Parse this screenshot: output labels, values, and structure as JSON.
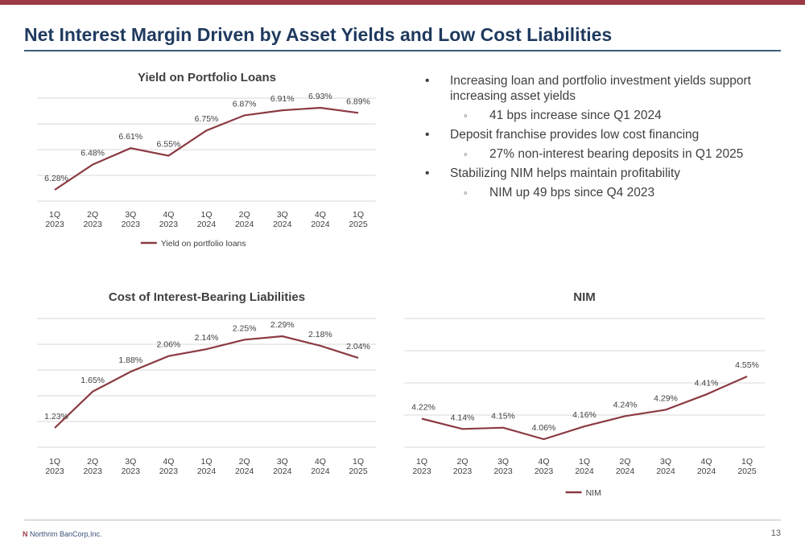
{
  "slide": {
    "title": "Net Interest Margin Driven by Asset Yields and Low Cost Liabilities",
    "page_number": "13",
    "logo_text": "Northrim BanCorp,Inc.",
    "accent_color": "#9b3a42",
    "title_color": "#1f3a5f"
  },
  "bullets": [
    {
      "level": 1,
      "text": "Increasing loan and portfolio investment yields support increasing asset yields"
    },
    {
      "level": 2,
      "text": "41 bps increase since Q1 2024"
    },
    {
      "level": 1,
      "text": "Deposit franchise provides low cost financing"
    },
    {
      "level": 2,
      "text": "27% non-interest bearing deposits in Q1 2025"
    },
    {
      "level": 1,
      "text": "Stabilizing NIM helps maintain profitability"
    },
    {
      "level": 2,
      "text": "NIM up 49 bps since Q4 2023"
    }
  ],
  "chart_data": [
    {
      "type": "line",
      "title": "Yield on Portfolio Loans",
      "categories": [
        [
          "1Q",
          "2023"
        ],
        [
          "2Q",
          "2023"
        ],
        [
          "3Q",
          "2023"
        ],
        [
          "4Q",
          "2023"
        ],
        [
          "1Q",
          "2024"
        ],
        [
          "2Q",
          "2024"
        ],
        [
          "3Q",
          "2024"
        ],
        [
          "4Q",
          "2024"
        ],
        [
          "1Q",
          "2025"
        ]
      ],
      "series": [
        {
          "name": "Yield on portfolio loans",
          "values": [
            6.28,
            6.48,
            6.61,
            6.55,
            6.75,
            6.87,
            6.91,
            6.93,
            6.89
          ]
        }
      ],
      "data_labels": [
        "6.28%",
        "6.48%",
        "6.61%",
        "6.55%",
        "6.75%",
        "6.87%",
        "6.91%",
        "6.93%",
        "6.89%"
      ],
      "legend": "bottom",
      "grid": true,
      "color": "#8b3a42"
    },
    {
      "type": "line",
      "title": "Cost of Interest-Bearing Liabilities",
      "categories": [
        [
          "1Q",
          "2023"
        ],
        [
          "2Q",
          "2023"
        ],
        [
          "3Q",
          "2023"
        ],
        [
          "4Q",
          "2023"
        ],
        [
          "1Q",
          "2024"
        ],
        [
          "2Q",
          "2024"
        ],
        [
          "3Q",
          "2024"
        ],
        [
          "4Q",
          "2024"
        ],
        [
          "1Q",
          "2025"
        ]
      ],
      "series": [
        {
          "values": [
            1.23,
            1.65,
            1.88,
            2.06,
            2.14,
            2.25,
            2.29,
            2.18,
            2.04
          ]
        }
      ],
      "data_labels": [
        "1.23%",
        "1.65%",
        "1.88%",
        "2.06%",
        "2.14%",
        "2.25%",
        "2.29%",
        "2.18%",
        "2.04%"
      ],
      "legend": "none",
      "grid": true,
      "color": "#8b3a42"
    },
    {
      "type": "line",
      "title": "NIM",
      "categories": [
        [
          "1Q",
          "2023"
        ],
        [
          "2Q",
          "2023"
        ],
        [
          "3Q",
          "2023"
        ],
        [
          "4Q",
          "2023"
        ],
        [
          "1Q",
          "2024"
        ],
        [
          "2Q",
          "2024"
        ],
        [
          "3Q",
          "2024"
        ],
        [
          "4Q",
          "2024"
        ],
        [
          "1Q",
          "2025"
        ]
      ],
      "series": [
        {
          "name": "NIM",
          "values": [
            4.22,
            4.14,
            4.15,
            4.06,
            4.16,
            4.24,
            4.29,
            4.41,
            4.55
          ]
        }
      ],
      "data_labels": [
        "4.22%",
        "4.14%",
        "4.15%",
        "4.06%",
        "4.16%",
        "4.24%",
        "4.29%",
        "4.41%",
        "4.55%"
      ],
      "legend": "bottom",
      "grid": true,
      "color": "#8b3a42"
    }
  ]
}
